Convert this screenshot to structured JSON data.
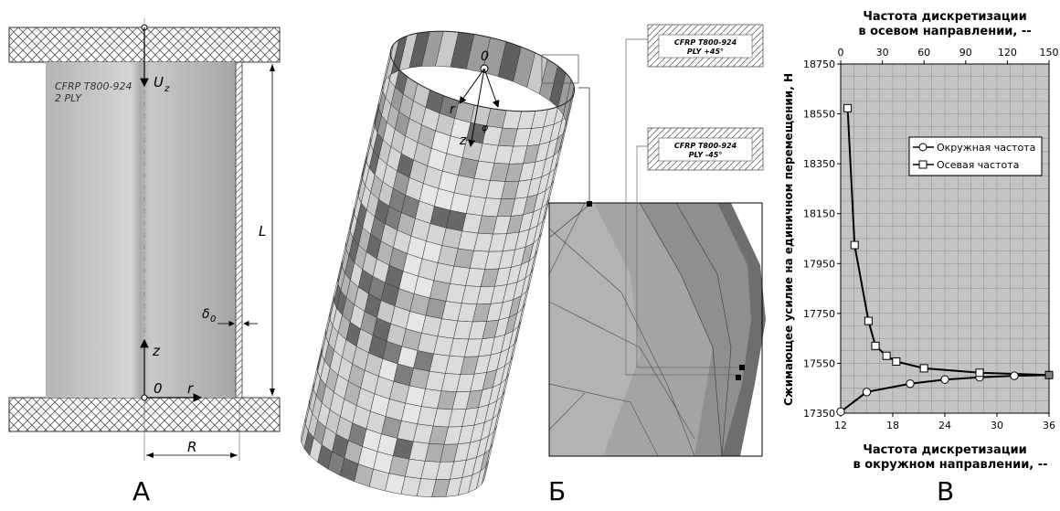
{
  "panel_a": {
    "caption": "А",
    "material_line1": "CFRP T800-924",
    "material_line2": "2 PLY",
    "label_uz": "U",
    "label_uz_sub": "z",
    "label_L": "L",
    "label_delta": "δ",
    "label_delta_sub": "0",
    "label_z": "z",
    "label_origin": "0",
    "label_r": "r",
    "label_R": "R"
  },
  "panel_b": {
    "caption": "Б",
    "label_origin": "0",
    "label_r": "r",
    "label_z": "z",
    "label_phi": "φ",
    "ply1_line1": "CFRP T800-924",
    "ply1_line2": "PLY +45°",
    "ply2_line1": "CFRP T800-924",
    "ply2_line2": "PLY -45°"
  },
  "panel_c": {
    "caption": "В",
    "colors": {
      "grid_bg": "#c4c4c4",
      "grid_line": "#8a8a8a",
      "series_line": "#000000",
      "marker_fill": "#ffffff",
      "shared_point": "#808080"
    }
  },
  "chart_data": {
    "type": "line",
    "top_axis_title_line1": "Частота дискретизации",
    "top_axis_title_line2": "в осевом направлении, --",
    "bottom_axis_title_line1": "Частота дискретизации",
    "bottom_axis_title_line2": "в окружном направлении, --",
    "ylabel": "Сжимающее усилие на единичном перемещении, Н",
    "ylim": [
      17350,
      18750
    ],
    "y_ticks": [
      "17350",
      "17550",
      "17750",
      "17950",
      "18150",
      "18350",
      "18550",
      "18750"
    ],
    "x_bottom_lim": [
      12,
      36
    ],
    "x_bottom_ticks": [
      "12",
      "18",
      "24",
      "30",
      "36"
    ],
    "x_top_lim": [
      0,
      150
    ],
    "x_top_ticks": [
      "0",
      "30",
      "60",
      "90",
      "120",
      "150"
    ],
    "legend_position": "top-right",
    "series": [
      {
        "name": "Окружная частота",
        "axis": "bottom",
        "marker": "circle",
        "x": [
          12,
          15,
          20,
          24,
          28,
          32,
          36
        ],
        "y": [
          17356,
          17435,
          17468,
          17485,
          17494,
          17500,
          17503
        ]
      },
      {
        "name": "Осевая частота",
        "axis": "top",
        "marker": "square",
        "x": [
          5,
          10,
          20,
          25,
          33,
          40,
          60,
          100,
          150
        ],
        "y": [
          18573,
          18024,
          17720,
          17620,
          17580,
          17557,
          17530,
          17512,
          17503
        ]
      }
    ]
  }
}
